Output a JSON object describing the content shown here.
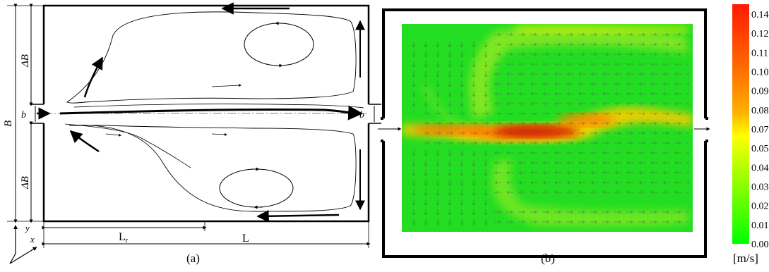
{
  "panel_a": {
    "caption": "(a)",
    "labels": {
      "B": "B",
      "delta_b_top": "ΔB",
      "delta_b_bottom": "ΔB",
      "b_inlet": "b",
      "b_outlet": "b",
      "L_r": "L",
      "L_r_sub": "r",
      "L": "L",
      "axis_x": "x",
      "axis_y": "y"
    }
  },
  "panel_b": {
    "caption": "(b)",
    "colorbar": {
      "unit": "[m/s]",
      "ticks": [
        "0.140",
        "0.128",
        "0.117",
        "0.105",
        "0.093",
        "0.082",
        "0.070",
        "0.058",
        "0.047",
        "0.035",
        "0.023",
        "0.012",
        "0.000"
      ],
      "colors": [
        "#ff1a00",
        "#ff6600",
        "#ffb000",
        "#ffff00",
        "#00ff00"
      ]
    },
    "field_colors": {
      "background": "#22dd22",
      "jet_core": "#dd2200",
      "jet_edge": "#ffcc00"
    }
  }
}
